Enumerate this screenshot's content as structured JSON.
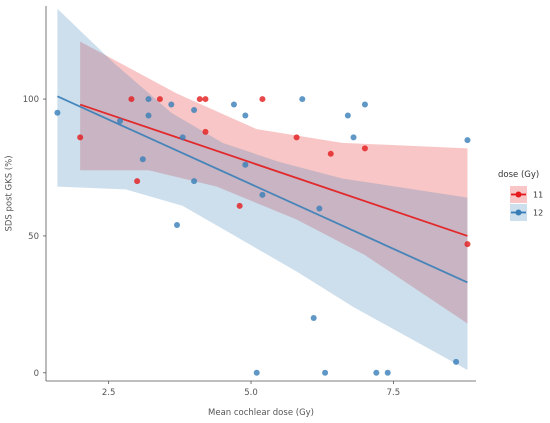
{
  "chart_data": {
    "type": "scatter",
    "xlabel": "Mean cochlear dose (Gy)",
    "ylabel": "SDS post GKS (%)",
    "xlim": [
      1.4,
      8.95
    ],
    "ylim": [
      -3,
      134
    ],
    "x_ticks": [
      2.5,
      5.0,
      7.5
    ],
    "x_tick_labels": [
      "2.5",
      "5.0",
      "7.5"
    ],
    "y_ticks": [
      0,
      50,
      100
    ],
    "y_tick_labels": [
      "0",
      "50",
      "100"
    ],
    "grid": false,
    "legend": {
      "title": "dose (Gy)",
      "position": "right"
    },
    "series": [
      {
        "name": "11",
        "color": "#E41A1C",
        "points": [
          [
            2.0,
            86
          ],
          [
            2.9,
            100
          ],
          [
            3.0,
            70
          ],
          [
            3.4,
            100
          ],
          [
            4.1,
            100
          ],
          [
            4.2,
            100
          ],
          [
            4.2,
            88
          ],
          [
            4.8,
            61
          ],
          [
            5.2,
            100
          ],
          [
            5.8,
            86
          ],
          [
            6.4,
            80
          ],
          [
            7.0,
            82
          ],
          [
            8.8,
            47
          ]
        ],
        "fit": [
          [
            2.0,
            98
          ],
          [
            8.8,
            50
          ]
        ],
        "band_upper": [
          [
            2.0,
            121
          ],
          [
            3.7,
            102
          ],
          [
            5.1,
            89
          ],
          [
            6.6,
            84
          ],
          [
            8.8,
            82
          ]
        ],
        "band_lower": [
          [
            2.0,
            74
          ],
          [
            3.2,
            74
          ],
          [
            4.4,
            68
          ],
          [
            5.8,
            56
          ],
          [
            7.0,
            43
          ],
          [
            8.8,
            18
          ]
        ]
      },
      {
        "name": "12",
        "color": "#377EB8",
        "points": [
          [
            1.6,
            95
          ],
          [
            2.7,
            92
          ],
          [
            3.1,
            78
          ],
          [
            3.2,
            100
          ],
          [
            3.2,
            94
          ],
          [
            3.6,
            98
          ],
          [
            3.7,
            54
          ],
          [
            3.8,
            86
          ],
          [
            4.0,
            96
          ],
          [
            4.0,
            70
          ],
          [
            4.7,
            98
          ],
          [
            4.9,
            94
          ],
          [
            4.9,
            76
          ],
          [
            5.1,
            0
          ],
          [
            5.2,
            65
          ],
          [
            5.9,
            100
          ],
          [
            6.1,
            20
          ],
          [
            6.2,
            60
          ],
          [
            6.3,
            0
          ],
          [
            6.7,
            94
          ],
          [
            6.8,
            86
          ],
          [
            7.0,
            98
          ],
          [
            7.2,
            0
          ],
          [
            7.4,
            0
          ],
          [
            8.6,
            4
          ],
          [
            8.8,
            85
          ]
        ],
        "fit": [
          [
            1.6,
            101
          ],
          [
            8.8,
            33
          ]
        ],
        "band_upper": [
          [
            1.6,
            133
          ],
          [
            2.6,
            113
          ],
          [
            3.6,
            95
          ],
          [
            4.5,
            84
          ],
          [
            5.5,
            77
          ],
          [
            6.6,
            71
          ],
          [
            8.8,
            64
          ]
        ],
        "band_lower": [
          [
            1.6,
            68
          ],
          [
            2.8,
            67
          ],
          [
            3.8,
            61
          ],
          [
            4.8,
            49
          ],
          [
            5.8,
            37
          ],
          [
            6.8,
            24
          ],
          [
            8.8,
            1
          ]
        ]
      }
    ]
  }
}
